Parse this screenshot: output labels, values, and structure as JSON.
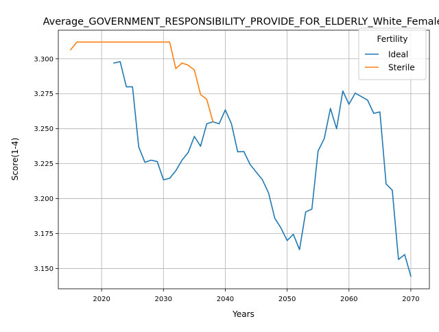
{
  "chart_data": {
    "type": "line",
    "title": "Average_GOVERNMENT_RESPONSIBILITY_PROVIDE_FOR_ELDERLY_White_Female",
    "xlabel": "Years",
    "ylabel": "Score(1-4)",
    "xlim": [
      2013,
      2073
    ],
    "ylim": [
      3.1355,
      3.3205
    ],
    "xticks": [
      2020,
      2030,
      2040,
      2050,
      2060,
      2070
    ],
    "yticks": [
      3.15,
      3.175,
      3.2,
      3.225,
      3.25,
      3.275,
      3.3
    ],
    "ytick_labels": [
      "3.150",
      "3.175",
      "3.200",
      "3.225",
      "3.250",
      "3.275",
      "3.300"
    ],
    "grid": true,
    "legend": {
      "title": "Fertility",
      "placement": "top-right"
    },
    "series": [
      {
        "name": "Ideal",
        "color": "#1f77b4",
        "x": [
          2022,
          2023,
          2024,
          2025,
          2026,
          2027,
          2028,
          2029,
          2030,
          2031,
          2032,
          2033,
          2034,
          2035,
          2036,
          2037,
          2038,
          2039,
          2040,
          2041,
          2042,
          2043,
          2044,
          2045,
          2046,
          2047,
          2048,
          2049,
          2050,
          2051,
          2052,
          2053,
          2054,
          2055,
          2056,
          2057,
          2058,
          2059,
          2060,
          2061,
          2062,
          2063,
          2064,
          2065,
          2066,
          2067,
          2068,
          2069,
          2070
        ],
        "values": [
          3.297,
          3.298,
          3.28,
          3.28,
          3.237,
          3.226,
          3.2275,
          3.2265,
          3.2135,
          3.2145,
          3.22,
          3.2275,
          3.233,
          3.2445,
          3.2375,
          3.2535,
          3.255,
          3.2535,
          3.2635,
          3.2535,
          3.2335,
          3.2337,
          3.2245,
          3.219,
          3.2135,
          3.204,
          3.186,
          3.179,
          3.17,
          3.1745,
          3.1635,
          3.1905,
          3.1925,
          3.234,
          3.243,
          3.2645,
          3.25,
          3.277,
          3.2675,
          3.2755,
          3.273,
          3.2705,
          3.261,
          3.262,
          3.2105,
          3.206,
          3.1565,
          3.16,
          3.1445
        ]
      },
      {
        "name": "Sterile",
        "color": "#ff7f0e",
        "x": [
          2015,
          2016,
          2017,
          2018,
          2019,
          2020,
          2021,
          2022,
          2023,
          2024,
          2025,
          2026,
          2027,
          2028,
          2029,
          2030,
          2031,
          2032,
          2033,
          2034,
          2035,
          2036,
          2037,
          2038
        ],
        "values": [
          3.3065,
          3.312,
          3.312,
          3.312,
          3.312,
          3.312,
          3.312,
          3.312,
          3.312,
          3.312,
          3.312,
          3.312,
          3.312,
          3.312,
          3.312,
          3.312,
          3.312,
          3.293,
          3.297,
          3.2955,
          3.292,
          3.2745,
          3.271,
          3.255
        ]
      }
    ]
  }
}
